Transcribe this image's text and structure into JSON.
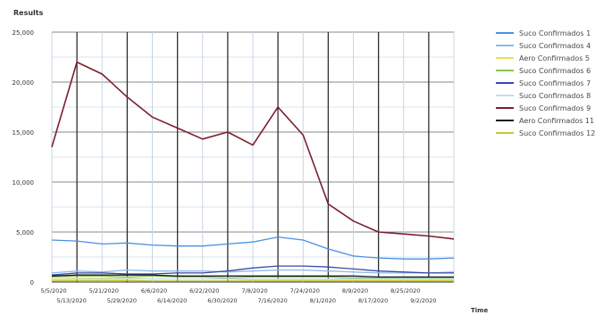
{
  "chart_data": {
    "type": "line",
    "title": "",
    "ylabel": "Results",
    "xlabel": "Time",
    "ylim": [
      0,
      25000
    ],
    "yticks": [
      0,
      5000,
      10000,
      15000,
      20000,
      25000
    ],
    "ytick_labels": [
      "0",
      "5,000",
      "10,000",
      "15,000",
      "20,000",
      "25,000"
    ],
    "x": [
      "5/1/2020",
      "5/8/2020",
      "5/15/2020",
      "5/22/2020",
      "5/29/2020",
      "6/5/2020",
      "6/12/2020",
      "6/19/2020",
      "6/26/2020",
      "7/3/2020",
      "7/10/2020",
      "7/17/2020",
      "7/24/2020",
      "7/31/2020",
      "8/7/2020",
      "8/14/2020",
      "8/21/2020"
    ],
    "xtick_labels_top": [
      "5/5/2020",
      "5/21/2020",
      "6/6/2020",
      "6/22/2020",
      "7/8/2020",
      "7/24/2020",
      "8/9/2020",
      "8/25/2020"
    ],
    "xtick_labels_bottom": [
      "5/13/2020",
      "5/29/2020",
      "6/14/2020",
      "6/30/2020",
      "7/16/2020",
      "8/1/2020",
      "8/17/2020",
      "9/2/2020"
    ],
    "grid": true,
    "legend_position": "right",
    "series": [
      {
        "name": "Suco Confirmados 1",
        "color": "#4a90e2",
        "values": [
          4200,
          4100,
          3800,
          3900,
          3700,
          3600,
          3600,
          3800,
          4000,
          4500,
          4200,
          3300,
          2600,
          2400,
          2300,
          2300,
          2400
        ]
      },
      {
        "name": "Suco Confirmados 4",
        "color": "#8fb8e8",
        "values": [
          900,
          1100,
          1000,
          1200,
          1100,
          1100,
          1100,
          1000,
          1100,
          1200,
          1200,
          1100,
          1000,
          900,
          900,
          900,
          1000
        ]
      },
      {
        "name": "Aero Confirmados 5",
        "color": "#e8e05a",
        "values": [
          300,
          400,
          400,
          400,
          300,
          300,
          300,
          300,
          200,
          200,
          200,
          200,
          200,
          200,
          200,
          200,
          200
        ]
      },
      {
        "name": "Suco Confirmados 6",
        "color": "#8bc34a",
        "values": [
          500,
          600,
          600,
          500,
          600,
          500,
          500,
          400,
          500,
          500,
          500,
          500,
          400,
          400,
          400,
          400,
          400
        ]
      },
      {
        "name": "Suco Confirmados 7",
        "color": "#3949ab",
        "values": [
          700,
          900,
          900,
          800,
          800,
          900,
          900,
          1100,
          1400,
          1600,
          1600,
          1500,
          1300,
          1100,
          1000,
          900,
          900
        ]
      },
      {
        "name": "Suco Confirmados 8",
        "color": "#bbdefb",
        "values": [
          200,
          300,
          300,
          300,
          300,
          300,
          300,
          300,
          300,
          300,
          300,
          300,
          300,
          300,
          300,
          300,
          300
        ]
      },
      {
        "name": "Suco Confirmados 9",
        "color": "#7b1f2e",
        "values": [
          13500,
          22000,
          20800,
          18500,
          16500,
          15400,
          14300,
          15000,
          13700,
          17500,
          14700,
          7800,
          6100,
          5000,
          4800,
          4600,
          4300
        ]
      },
      {
        "name": "Aero Confirmados 11",
        "color": "#1a1a1a",
        "values": [
          600,
          700,
          700,
          700,
          700,
          600,
          600,
          600,
          600,
          600,
          600,
          600,
          600,
          500,
          500,
          500,
          500
        ]
      },
      {
        "name": "Suco Confirmados 12",
        "color": "#c6c63a",
        "values": [
          100,
          150,
          150,
          150,
          100,
          100,
          100,
          100,
          100,
          100,
          100,
          100,
          100,
          100,
          100,
          100,
          100
        ]
      }
    ]
  }
}
